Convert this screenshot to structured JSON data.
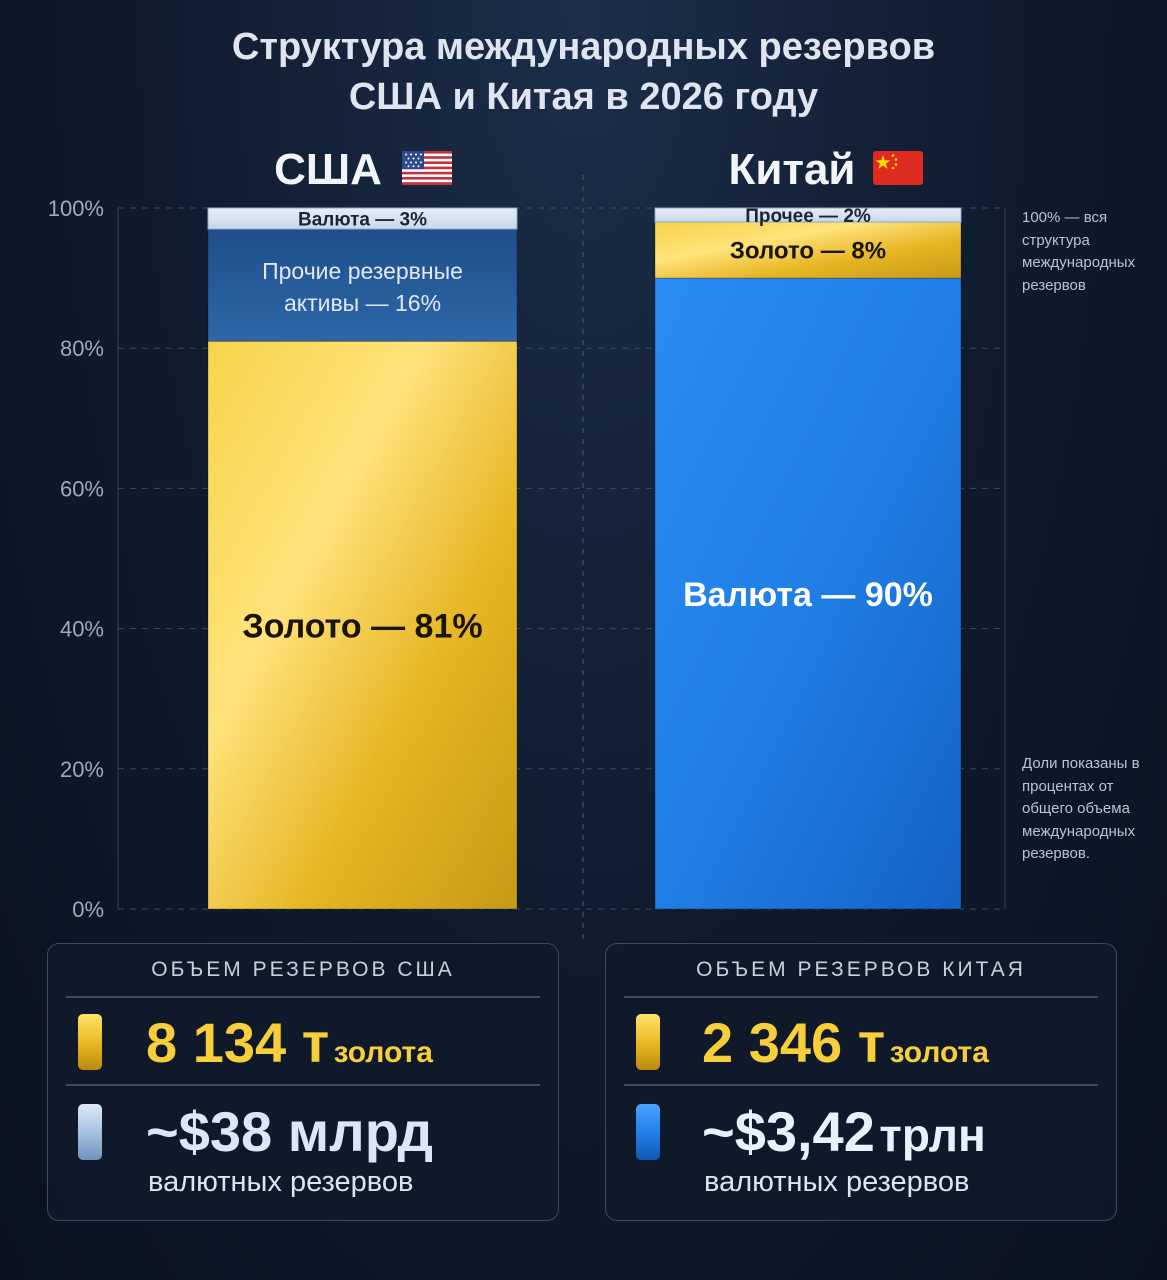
{
  "title": {
    "line1": "Структура международных резервов",
    "line2": "США и Китая в 2026 году"
  },
  "chart_data": {
    "type": "bar",
    "stacked": true,
    "categories": [
      "США",
      "Китай"
    ],
    "flags": [
      "us-flag",
      "cn-flag"
    ],
    "ylim": [
      0,
      100
    ],
    "y_ticks": [
      "0%",
      "20%",
      "40%",
      "60%",
      "80%",
      "100%"
    ],
    "grid": true,
    "bars": [
      {
        "category": "США",
        "segments": [
          {
            "label": "Золото — 81%",
            "value": 81,
            "color": "#f0c12a"
          },
          {
            "label": "Прочие резервные",
            "label2": "активы — 16%",
            "value": 16,
            "color": "#2f5f9b"
          },
          {
            "label": "Валюта — 3%",
            "value": 3,
            "color": "#dbe7f5"
          }
        ]
      },
      {
        "category": "Китай",
        "segments": [
          {
            "label": "Валюта — 90%",
            "value": 90,
            "color": "#1f7fe6"
          },
          {
            "label": "Золото — 8%",
            "value": 8,
            "color": "#f0c12a"
          },
          {
            "label": "Прочее — 2%",
            "value": 2,
            "color": "#dbe7f5"
          }
        ]
      }
    ]
  },
  "notes": {
    "top": "100% — вся структура международных резервов",
    "bottom": "Доли показаны в процентах от общего объема международных резервов."
  },
  "panels": [
    {
      "heading": "ОБЪЕМ РЕЗЕРВОВ США",
      "gold_value": "8 134 т",
      "gold_unit": "золота",
      "fx_value": "~$38 млрд",
      "fx_caption": "валютных резервов"
    },
    {
      "heading": "ОБЪЕМ РЕЗЕРВОВ КИТАЯ",
      "gold_value": "2 346 т",
      "gold_unit": "золота",
      "fx_value": "~$3,42",
      "fx_unit": "трлн",
      "fx_caption": "валютных резервов"
    }
  ]
}
